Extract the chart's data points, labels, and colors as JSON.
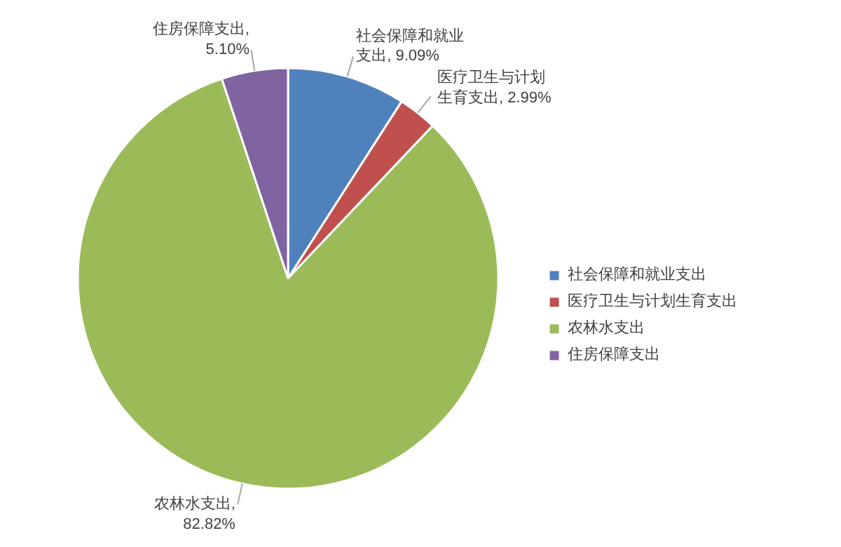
{
  "chart_data": {
    "type": "pie",
    "categories": [
      "社会保障和就业支出",
      "医疗卫生与计划生育支出",
      "农林水支出",
      "住房保障支出"
    ],
    "values": [
      9.09,
      2.99,
      82.82,
      5.1
    ],
    "colors": [
      "#4f81bd",
      "#c0504d",
      "#9bbb59",
      "#8064a2"
    ],
    "value_labels": [
      "社会保障和就业支出, 9.09%",
      "医疗卫生与计划生育支出, 2.99%",
      "农林水支出, 82.82%",
      "住房保障支出, 5.10%"
    ],
    "legend": "right"
  }
}
